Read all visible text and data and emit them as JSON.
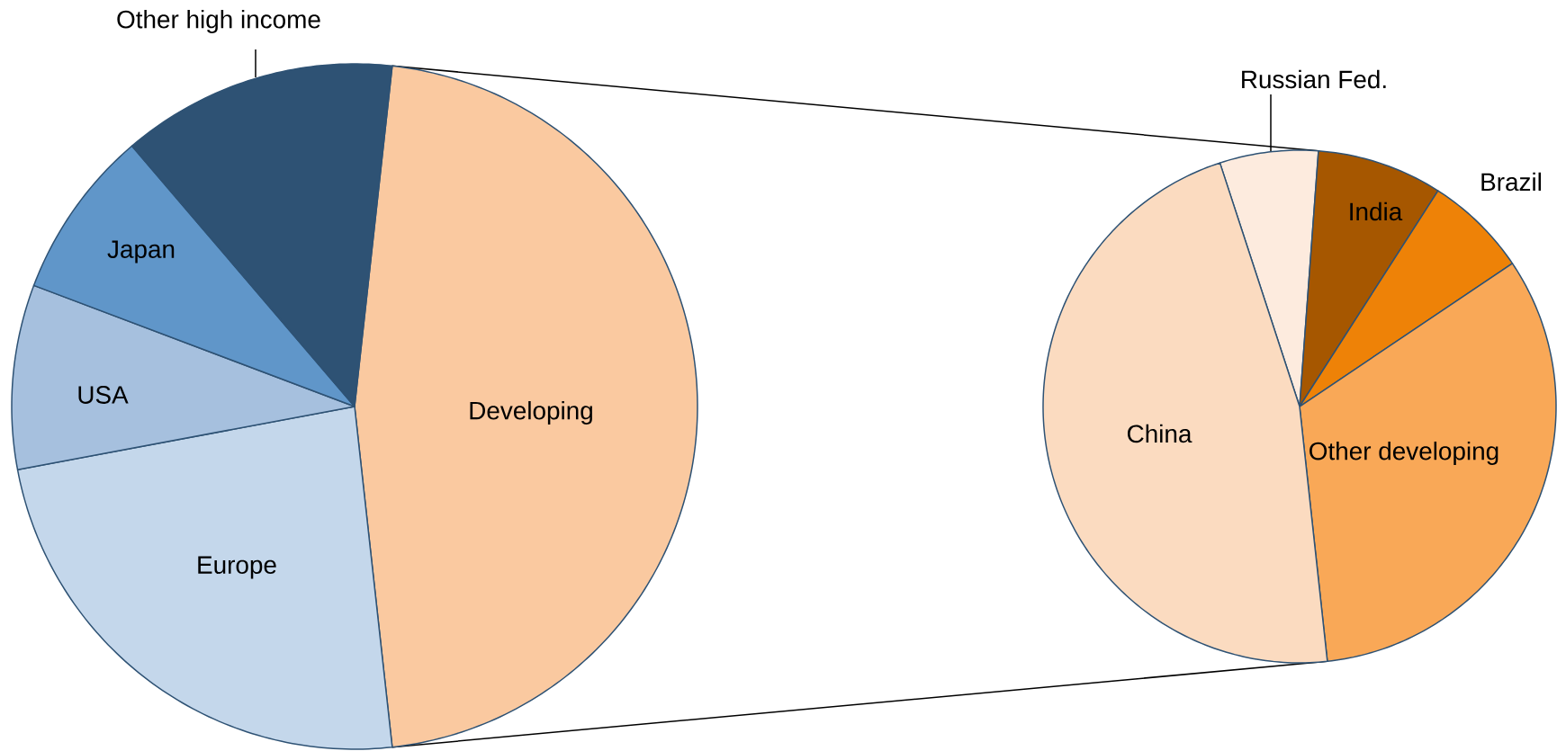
{
  "chart_data": [
    {
      "type": "pie",
      "categories": [
        "Developing",
        "Europe",
        "USA",
        "Japan",
        "Other high income"
      ],
      "values": [
        46.5,
        23.8,
        8.7,
        8.0,
        13.0
      ],
      "colors": [
        "#fac9a0",
        "#c4d7eb",
        "#a6c0de",
        "#6096c9",
        "#2e5274"
      ]
    },
    {
      "type": "pie",
      "categories": [
        "Russian Fed.",
        "India",
        "Brazil",
        "Other developing",
        "China"
      ],
      "values": [
        6.2,
        7.9,
        6.5,
        32.7,
        46.7
      ],
      "colors": [
        "#fdebde",
        "#a65700",
        "#ee8207",
        "#f9a857",
        "#fbdbc0"
      ]
    }
  ]
}
